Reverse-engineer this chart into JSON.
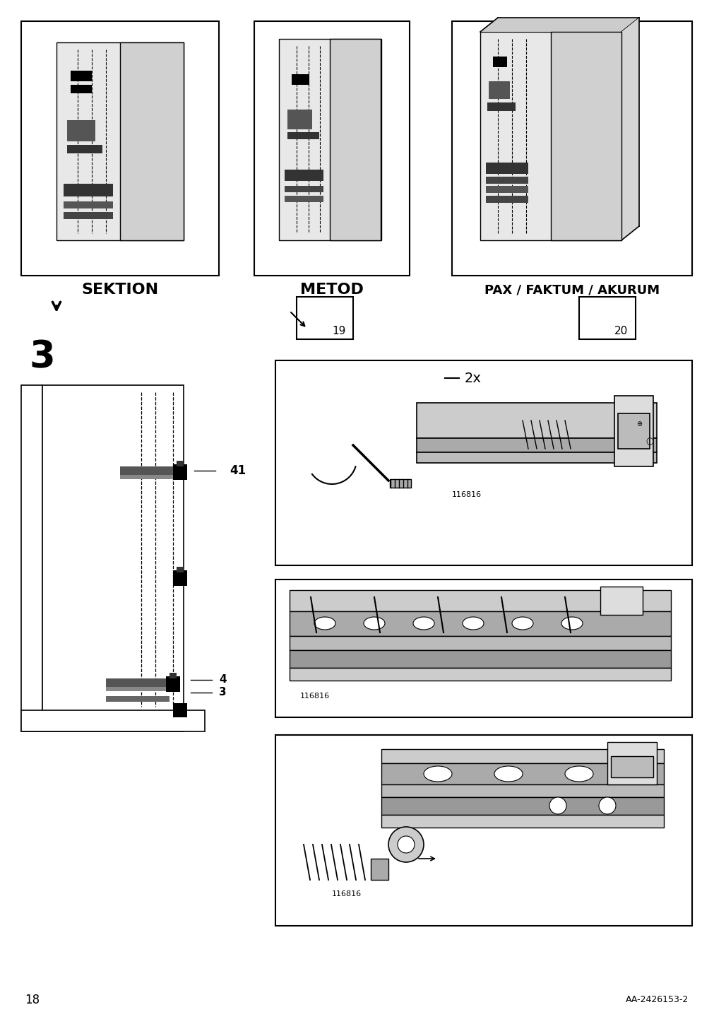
{
  "page_number": "18",
  "document_id": "AA-2426153-2",
  "background_color": "#ffffff",
  "line_color": "#000000",
  "step_number": "3",
  "labels": {
    "sektion": "SEKTION",
    "metod": "METOD",
    "pax": "PAX / FAKTUM / AKURUM",
    "part_41": "41",
    "part_4": "4",
    "part_3": "3",
    "part_2x": "2x",
    "part_code": "116816"
  },
  "page_num_fontsize": 12,
  "step_fontsize": 32,
  "label_fontsize": 14,
  "ref_fontsize": 9
}
